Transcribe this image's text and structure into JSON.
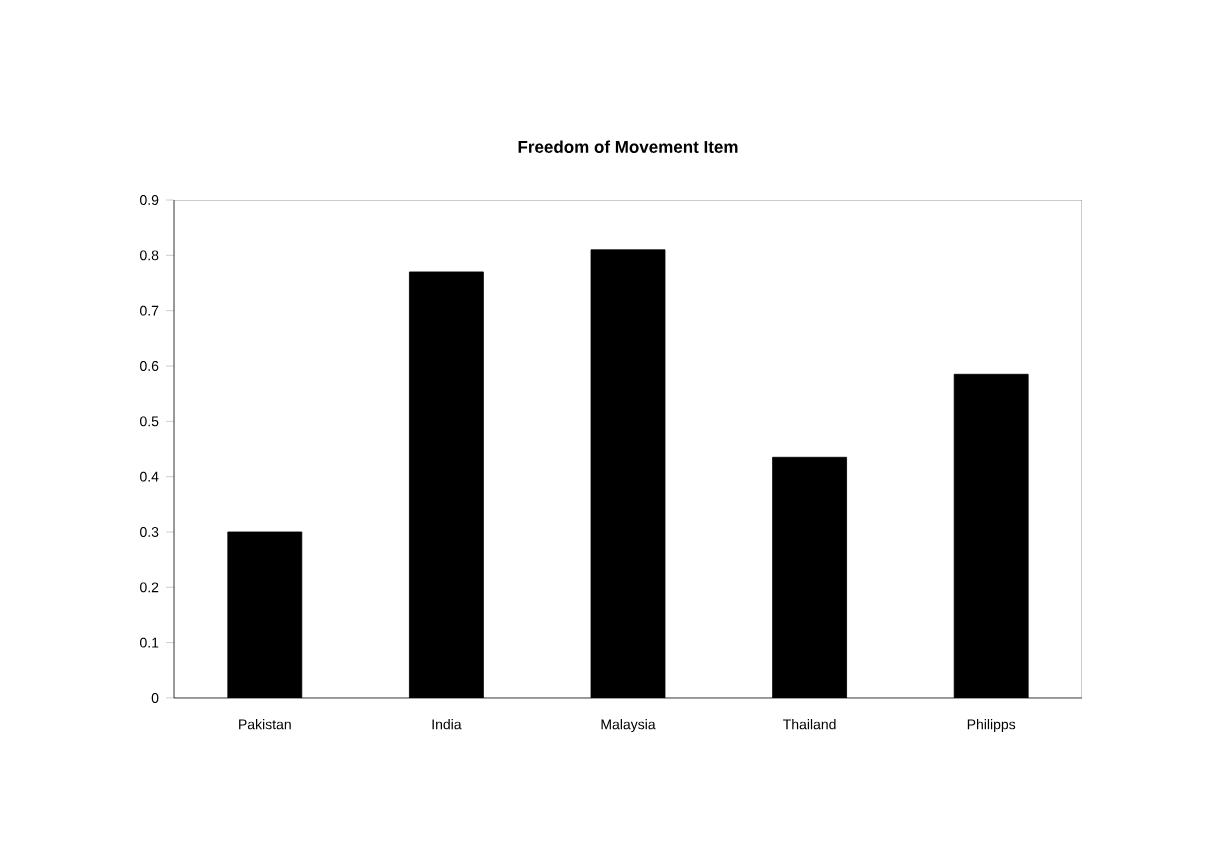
{
  "chart_data": {
    "type": "bar",
    "title": "Freedom of Movement Item",
    "categories": [
      "Pakistan",
      "India",
      "Malaysia",
      "Thailand",
      "Philipps"
    ],
    "values": [
      0.3,
      0.77,
      0.81,
      0.435,
      0.585
    ],
    "color": "#000000",
    "ylim": [
      0,
      0.9
    ],
    "yticks": [
      0,
      0.1,
      0.2,
      0.3,
      0.4,
      0.5,
      0.6,
      0.7,
      0.8,
      0.9
    ],
    "grid": false
  }
}
